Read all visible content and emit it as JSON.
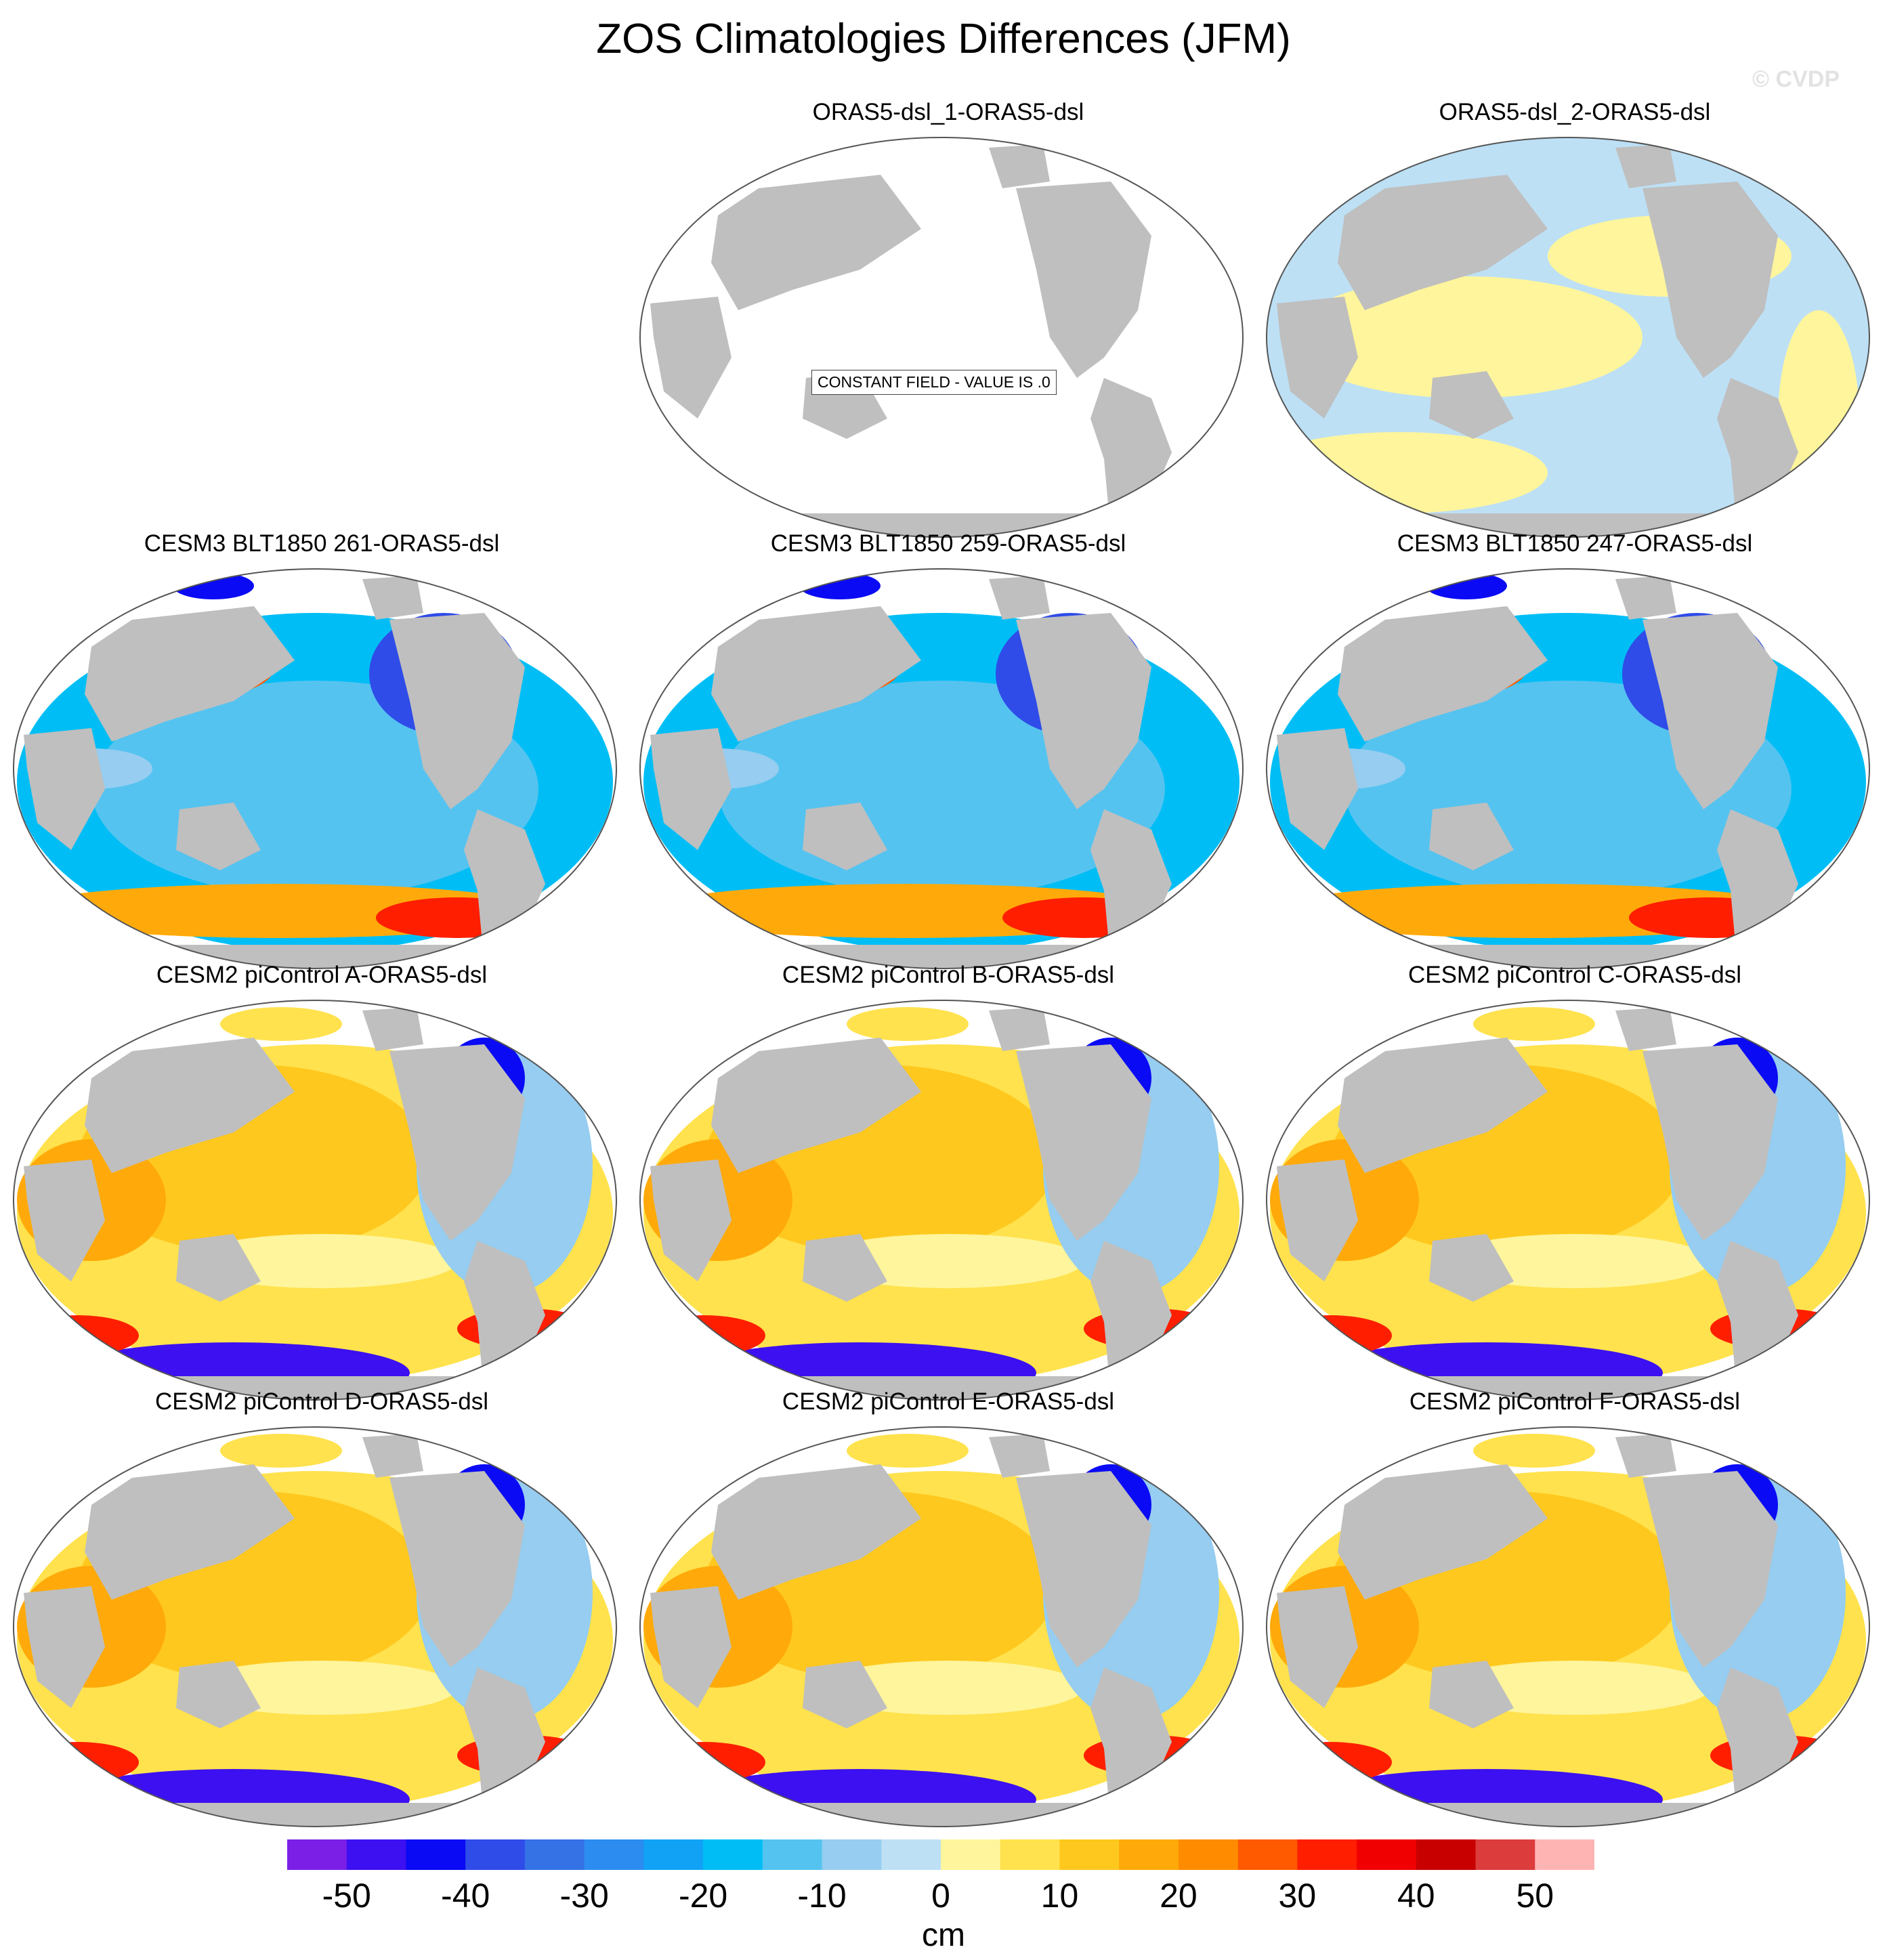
{
  "title": "ZOS Climatologies Differences (JFM)",
  "watermark": "© CVDP",
  "constant_field_text": "CONSTANT FIELD - VALUE IS .0",
  "land_color": "#bfbfbf",
  "panels": [
    {
      "label": "ORAS5-dsl_1-ORAS5-dsl",
      "pattern": "zero"
    },
    {
      "label": "ORAS5-dsl_2-ORAS5-dsl",
      "pattern": "near-zero"
    },
    {
      "label": "CESM3 BLT1850 261-ORAS5-dsl",
      "pattern": "cesm3"
    },
    {
      "label": "CESM3 BLT1850 259-ORAS5-dsl",
      "pattern": "cesm3"
    },
    {
      "label": "CESM3 BLT1850 247-ORAS5-dsl",
      "pattern": "cesm3"
    },
    {
      "label": "CESM2 piControl A-ORAS5-dsl",
      "pattern": "cesm2"
    },
    {
      "label": "CESM2 piControl B-ORAS5-dsl",
      "pattern": "cesm2"
    },
    {
      "label": "CESM2 piControl C-ORAS5-dsl",
      "pattern": "cesm2"
    },
    {
      "label": "CESM2 piControl D-ORAS5-dsl",
      "pattern": "cesm2"
    },
    {
      "label": "CESM2 piControl E-ORAS5-dsl",
      "pattern": "cesm2"
    },
    {
      "label": "CESM2 piControl F-ORAS5-dsl",
      "pattern": "cesm2"
    }
  ],
  "colorbar": {
    "units": "cm",
    "colors": [
      "#7b1fe6",
      "#3c10f0",
      "#0a0af5",
      "#2f4ce8",
      "#3472e6",
      "#2c8cf0",
      "#12a2f5",
      "#00bef5",
      "#55c3f0",
      "#96cdf0",
      "#bde0f5",
      "#fff59c",
      "#ffe24d",
      "#ffc81e",
      "#ffaa0a",
      "#ff8c00",
      "#ff5a00",
      "#ff1e00",
      "#f00000",
      "#c80000",
      "#dc3c3c",
      "#ffb4b4"
    ],
    "tick_labels": [
      "-50",
      "-40",
      "-30",
      "-20",
      "-10",
      "0",
      "10",
      "20",
      "30",
      "40",
      "50"
    ]
  }
}
